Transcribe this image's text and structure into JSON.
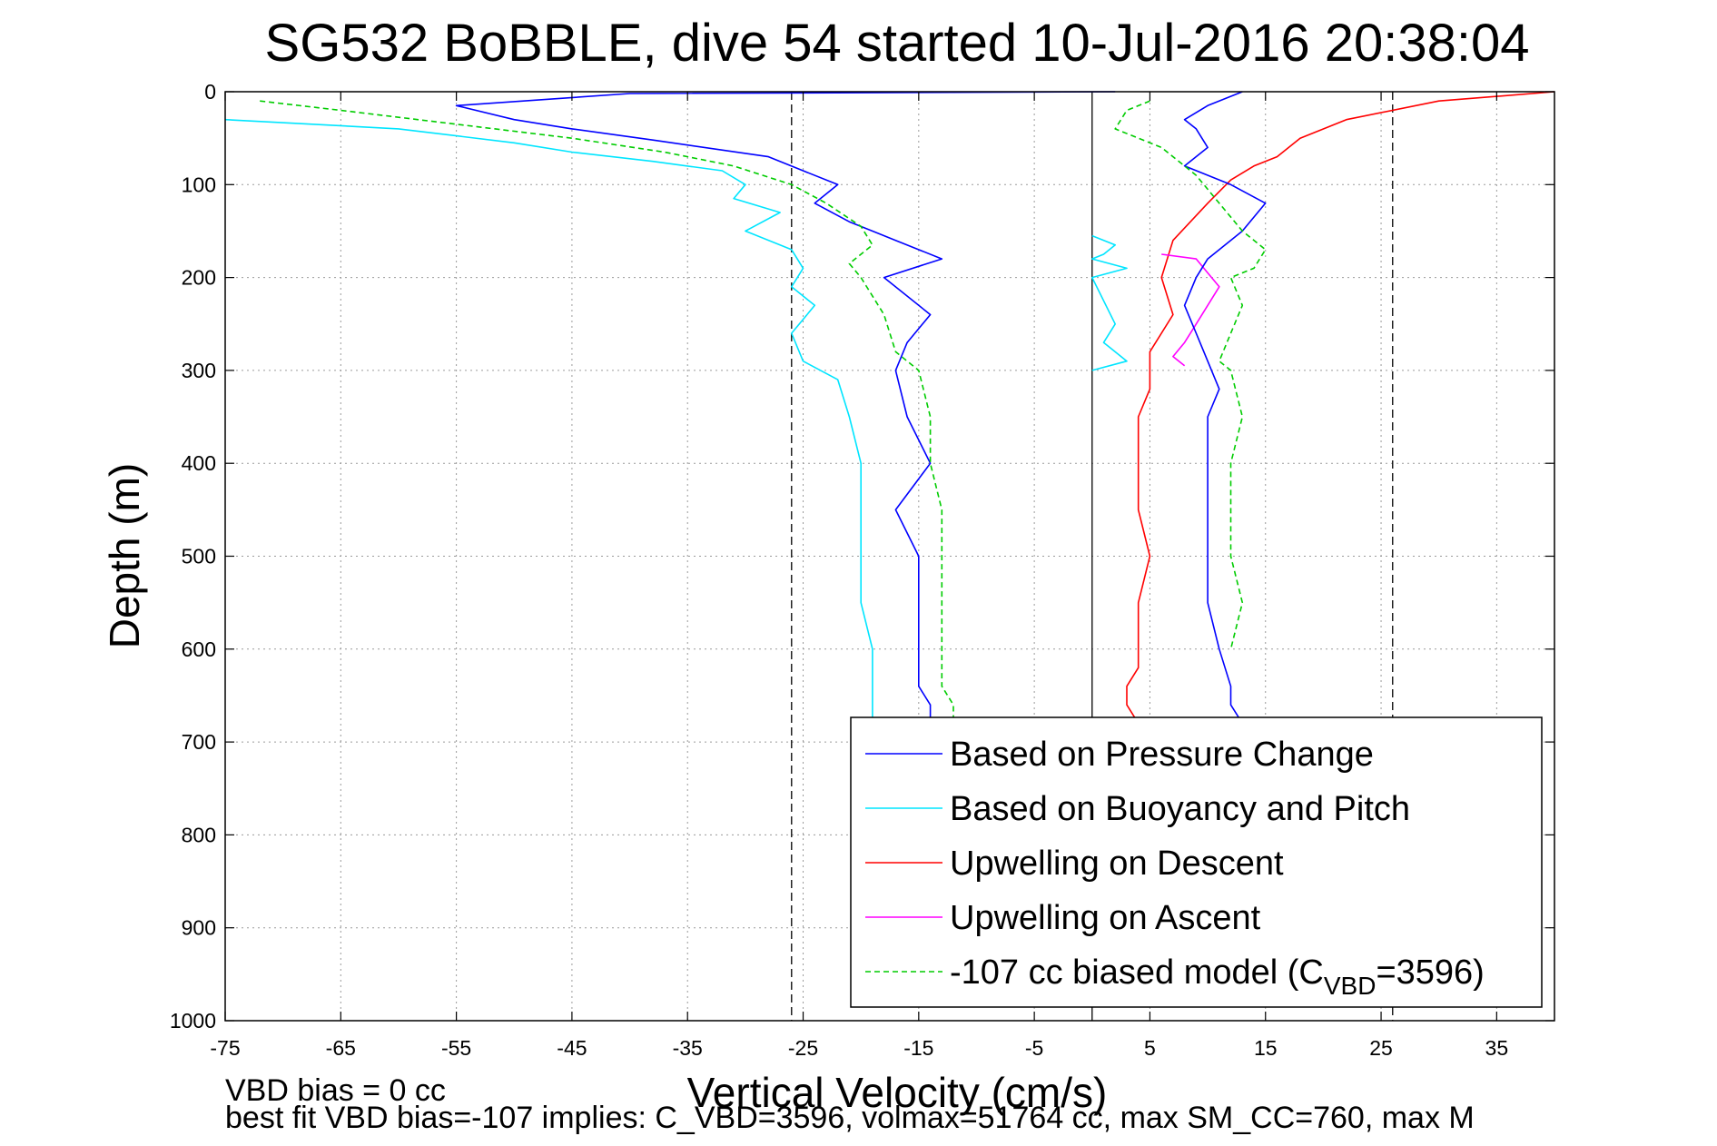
{
  "chart_data": {
    "type": "line",
    "title": "SG532 BoBBLE, dive 54 started 10-Jul-2016 20:38:04",
    "xlabel": "Vertical Velocity (cm/s)",
    "ylabel": "Depth (m)",
    "xlim": [
      -75,
      40
    ],
    "ylim": [
      0,
      1000
    ],
    "y_reversed": true,
    "grid": true,
    "legend_position": "bottom-right",
    "x_ticks": [
      "-75",
      "-65",
      "-55",
      "-45",
      "-35",
      "-25",
      "-15",
      "-5",
      "5",
      "15",
      "25",
      "35"
    ],
    "y_ticks": [
      "0",
      "100",
      "200",
      "300",
      "400",
      "500",
      "600",
      "700",
      "800",
      "900",
      "1000"
    ],
    "reference_lines": [
      {
        "x": -26,
        "style": "dashed",
        "color": "#000000"
      },
      {
        "x": 0,
        "style": "solid",
        "color": "#000000"
      },
      {
        "x": 26,
        "style": "dashed",
        "color": "#000000"
      }
    ],
    "series": [
      {
        "name": "Based on Pressure Change",
        "color": "#0000ff",
        "x": [
          2,
          -40,
          -55,
          -50,
          -45,
          -38,
          -28,
          -25,
          -22,
          -24,
          -21,
          -17,
          -13,
          -18,
          -14,
          -16,
          -17,
          -16,
          -14,
          -17,
          -15,
          -15,
          -15,
          -15,
          -15,
          -14,
          -14
        ],
        "y": [
          0,
          2,
          15,
          30,
          40,
          52,
          70,
          85,
          100,
          120,
          140,
          160,
          180,
          200,
          240,
          270,
          300,
          350,
          400,
          450,
          500,
          550,
          600,
          620,
          640,
          660,
          680
        ]
      },
      {
        "name": "Based on Buoyancy and Pitch",
        "color": "#00e5ff",
        "x": [
          -75,
          -60,
          -50,
          -45,
          -38,
          -32,
          -30,
          -31,
          -27,
          -30,
          -26,
          -25,
          -26,
          -24,
          -26,
          -25,
          -22,
          -21,
          -20,
          -20,
          -20,
          -20,
          -19,
          -19,
          -19
        ],
        "y": [
          30,
          40,
          55,
          65,
          75,
          85,
          100,
          115,
          130,
          150,
          170,
          190,
          210,
          230,
          260,
          290,
          310,
          350,
          400,
          450,
          500,
          550,
          600,
          650,
          680
        ]
      },
      {
        "name": "Upwelling on Descent",
        "color": "#ff0000",
        "x": [
          40,
          30,
          22,
          18,
          16,
          14,
          12,
          10,
          7,
          6,
          7,
          5,
          5,
          4,
          4,
          4,
          5,
          4,
          4,
          4,
          3,
          3,
          4
        ],
        "y": [
          0,
          10,
          30,
          50,
          70,
          80,
          95,
          120,
          160,
          200,
          240,
          280,
          320,
          350,
          400,
          450,
          500,
          550,
          600,
          620,
          640,
          660,
          680
        ]
      },
      {
        "name": "Upwelling on Ascent",
        "color": "#ff00ff",
        "x": [
          6,
          9,
          10,
          11,
          10,
          9,
          8,
          7,
          8
        ],
        "y": [
          175,
          180,
          195,
          210,
          230,
          250,
          270,
          285,
          295
        ]
      },
      {
        "name": "-107 cc biased model (C",
        "name_sub": "VBD",
        "name_tail": "=3596)",
        "color": "#00cc00",
        "dashed": true,
        "x": [
          -72,
          -65,
          -55,
          -45,
          -37,
          -31,
          -26,
          -23,
          -20,
          -19,
          -21,
          -20,
          -18,
          -17,
          -15,
          -14,
          -14,
          -13,
          -13,
          -13,
          -13,
          -13,
          -13,
          -12,
          -12
        ],
        "y": [
          10,
          20,
          35,
          50,
          65,
          80,
          100,
          120,
          145,
          165,
          185,
          200,
          240,
          280,
          300,
          350,
          400,
          450,
          500,
          550,
          600,
          620,
          640,
          660,
          680
        ]
      },
      {
        "name": "",
        "color": "#0000ff",
        "x": [
          13,
          10,
          8,
          9,
          10,
          8,
          12,
          15,
          13,
          10,
          9,
          8,
          9,
          10,
          11,
          10,
          10,
          10,
          10,
          10,
          11,
          12,
          12,
          13
        ],
        "y": [
          0,
          15,
          30,
          40,
          60,
          80,
          100,
          120,
          150,
          180,
          200,
          230,
          260,
          290,
          320,
          350,
          400,
          450,
          500,
          550,
          600,
          640,
          660,
          680
        ]
      },
      {
        "name": "",
        "color": "#00e5ff",
        "x": [
          0,
          2,
          1,
          0,
          3,
          0,
          2,
          1,
          3,
          0
        ],
        "y": [
          155,
          165,
          175,
          180,
          190,
          200,
          250,
          270,
          290,
          300
        ]
      },
      {
        "name": "",
        "color": "#00cc00",
        "dashed": true,
        "x": [
          5,
          3,
          2,
          6,
          9,
          11,
          13,
          15,
          14,
          12,
          13,
          12,
          11,
          12,
          13,
          12,
          12,
          12,
          13,
          12
        ],
        "y": [
          10,
          20,
          40,
          60,
          90,
          120,
          150,
          170,
          190,
          200,
          230,
          260,
          290,
          300,
          350,
          400,
          450,
          500,
          550,
          600
        ]
      }
    ]
  },
  "footer": {
    "line1": "VBD bias = 0 cc",
    "line2": "best fit VBD bias=-107 implies: C_VBD=3596, volmax=51764 cc, max SM_CC=760, max M"
  }
}
